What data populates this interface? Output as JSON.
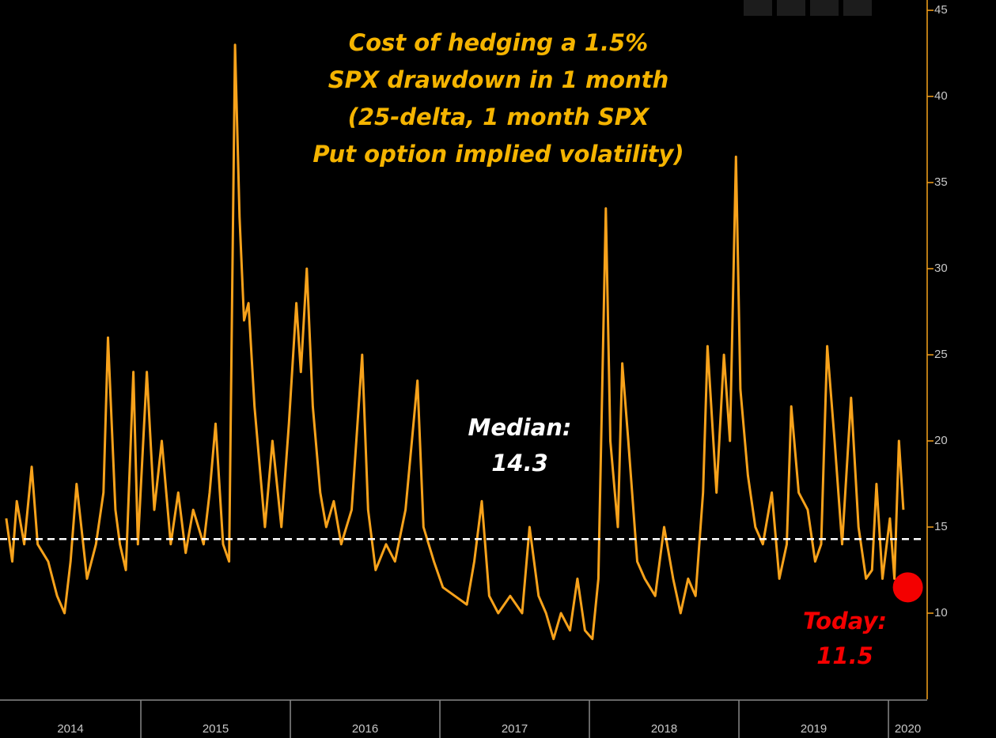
{
  "chart_data": {
    "type": "line",
    "title": [
      "Cost of hedging a 1.5%",
      "SPX drawdown in 1 month",
      "(25-delta, 1 month SPX",
      "Put option implied volatility)"
    ],
    "x": [
      2014.1,
      2014.14,
      2014.17,
      2014.22,
      2014.27,
      2014.31,
      2014.38,
      2014.44,
      2014.49,
      2014.53,
      2014.57,
      2014.64,
      2014.7,
      2014.75,
      2014.78,
      2014.83,
      2014.86,
      2014.9,
      2014.95,
      2014.98,
      2015.04,
      2015.09,
      2015.14,
      2015.2,
      2015.25,
      2015.3,
      2015.35,
      2015.42,
      2015.46,
      2015.5,
      2015.55,
      2015.59,
      2015.63,
      2015.66,
      2015.69,
      2015.72,
      2015.76,
      2015.83,
      2015.88,
      2015.94,
      2015.99,
      2016.04,
      2016.07,
      2016.11,
      2016.15,
      2016.2,
      2016.24,
      2016.29,
      2016.34,
      2016.41,
      2016.48,
      2016.52,
      2016.57,
      2016.64,
      2016.7,
      2016.77,
      2016.85,
      2016.89,
      2016.96,
      2017.02,
      2017.1,
      2017.18,
      2017.23,
      2017.28,
      2017.33,
      2017.39,
      2017.47,
      2017.55,
      2017.6,
      2017.66,
      2017.71,
      2017.76,
      2017.81,
      2017.87,
      2017.92,
      2017.97,
      2018.02,
      2018.06,
      2018.11,
      2018.14,
      2018.19,
      2018.22,
      2018.26,
      2018.32,
      2018.37,
      2018.44,
      2018.5,
      2018.56,
      2018.61,
      2018.66,
      2018.71,
      2018.76,
      2018.79,
      2018.85,
      2018.9,
      2018.94,
      2018.98,
      2019.01,
      2019.06,
      2019.11,
      2019.16,
      2019.22,
      2019.27,
      2019.32,
      2019.35,
      2019.4,
      2019.46,
      2019.51,
      2019.55,
      2019.59,
      2019.64,
      2019.69,
      2019.75,
      2019.8,
      2019.85,
      2019.89,
      2019.92,
      2019.96,
      2020.01,
      2020.04,
      2020.07,
      2020.1
    ],
    "values": [
      15.5,
      13,
      16.5,
      14,
      18.5,
      14,
      13,
      11,
      10,
      13,
      17.5,
      12,
      14,
      17,
      26,
      16,
      14,
      12.5,
      24,
      14,
      24,
      16,
      20,
      14,
      17,
      13.5,
      16,
      14,
      17,
      21,
      14,
      13,
      43,
      33,
      27,
      28,
      22,
      15,
      20,
      15,
      21,
      28,
      24,
      30,
      22,
      17,
      15,
      16.5,
      14,
      16,
      25,
      16,
      12.5,
      14,
      13,
      16,
      23.5,
      15,
      13,
      11.5,
      11,
      10.5,
      13,
      16.5,
      11,
      10,
      11,
      10,
      15,
      11,
      10,
      8.5,
      10,
      9,
      12,
      9,
      8.5,
      12,
      33.5,
      20,
      15,
      24.5,
      20,
      13,
      12,
      11,
      15,
      12,
      10,
      12,
      11,
      17,
      25.5,
      17,
      25,
      20,
      36.5,
      23,
      18,
      15,
      14,
      17,
      12,
      14,
      22,
      17,
      16,
      13,
      14,
      25.5,
      20,
      14,
      22.5,
      15,
      12,
      12.5,
      17.5,
      12,
      15.5,
      12,
      20,
      16
    ],
    "color": "#f7a21b",
    "xlim": [
      2014.058,
      2020.259
    ],
    "xticks": [
      2014,
      2015,
      2016,
      2017,
      2018,
      2019,
      2020
    ],
    "ylim": [
      5,
      45.6
    ],
    "yticks": [
      10,
      15,
      20,
      25,
      30,
      35,
      40,
      45
    ],
    "median": {
      "label": "Median:",
      "value": 14.3
    },
    "today": {
      "label": "Today:",
      "x": 2020.13,
      "value": 11.5
    }
  }
}
